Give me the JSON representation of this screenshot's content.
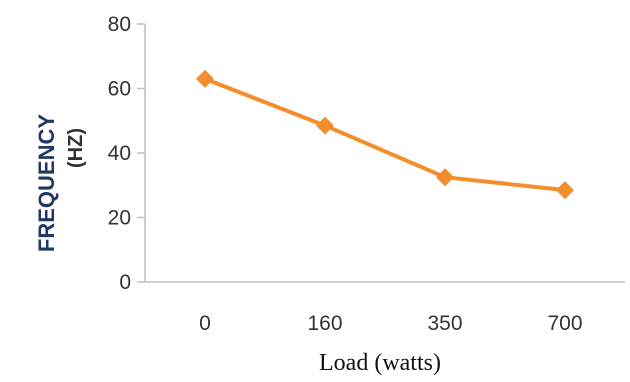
{
  "chart_data": {
    "type": "line",
    "categories": [
      "0",
      "160",
      "350",
      "700"
    ],
    "series": [
      {
        "values": [
          63,
          48.5,
          32.5,
          28.5
        ],
        "color": "#f28e2b"
      }
    ],
    "ylabel": "FREQUENCY",
    "ylabel_unit": "(HZ)",
    "xlabel": "Load (watts)",
    "ylim": [
      0,
      80
    ],
    "yticks": [
      "0",
      "20",
      "40",
      "60",
      "80"
    ],
    "grid": false,
    "legend": "none",
    "colors": {
      "line": "#f28e2b",
      "marker": "#f28e2b",
      "axis": "#bfbfbf",
      "ylabel": "#1f3864"
    }
  }
}
